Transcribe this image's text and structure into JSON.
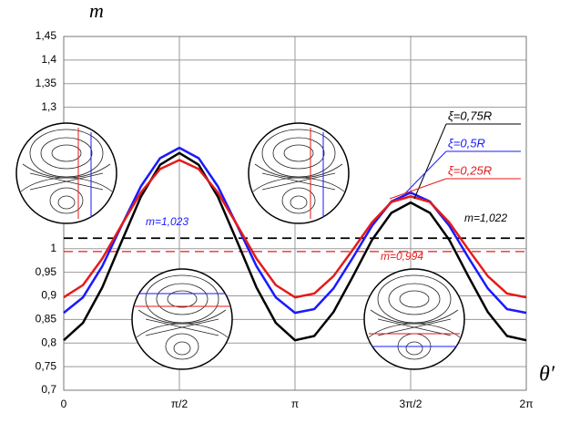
{
  "chart_data": {
    "type": "line",
    "y_label": "m",
    "x_label": "θ′",
    "x": [
      0,
      0.2618,
      0.5236,
      0.7854,
      1.0472,
      1.309,
      1.5708,
      1.8326,
      2.0944,
      2.3562,
      2.618,
      2.8798,
      3.1416,
      3.4034,
      3.6652,
      3.927,
      4.1888,
      4.4506,
      4.7124,
      4.9742,
      5.236,
      5.4978,
      5.7596,
      6.0214,
      6.2832
    ],
    "series": [
      {
        "name": "ξ=0,75R",
        "color": "#000000",
        "values": [
          0.806,
          0.843,
          0.918,
          1.015,
          1.11,
          1.178,
          1.203,
          1.178,
          1.11,
          1.015,
          0.918,
          0.843,
          0.806,
          0.815,
          0.866,
          0.941,
          1.019,
          1.076,
          1.098,
          1.076,
          1.019,
          0.941,
          0.866,
          0.815,
          0.806
        ]
      },
      {
        "name": "ξ=0,5R",
        "color": "#1a1aff",
        "values": [
          0.864,
          0.897,
          0.963,
          1.049,
          1.132,
          1.192,
          1.214,
          1.192,
          1.132,
          1.049,
          0.963,
          0.897,
          0.864,
          0.872,
          0.916,
          0.981,
          1.049,
          1.1,
          1.119,
          1.1,
          1.049,
          0.981,
          0.916,
          0.872,
          0.864
        ]
      },
      {
        "name": "ξ=0,25R",
        "color": "#e51a1a",
        "values": [
          0.897,
          0.923,
          0.979,
          1.05,
          1.119,
          1.169,
          1.188,
          1.169,
          1.119,
          1.05,
          0.979,
          0.923,
          0.897,
          0.905,
          0.942,
          0.998,
          1.056,
          1.099,
          1.111,
          1.099,
          1.056,
          0.998,
          0.942,
          0.905,
          0.897
        ]
      }
    ],
    "reference_lines": [
      {
        "value": 1.023,
        "label": "m=1,023",
        "color": "#1a1aff"
      },
      {
        "value": 1.022,
        "label": "m=1,022",
        "color": "#000000"
      },
      {
        "value": 0.994,
        "label": "m=0,994",
        "color": "#e51a1a"
      }
    ],
    "xlim": [
      0,
      6.2832
    ],
    "xticks": [
      0,
      {
        "value": 1.5708,
        "label": "π/2"
      },
      {
        "value": 3.1416,
        "label": "π"
      },
      {
        "value": 4.7124,
        "label": "3π/2"
      },
      {
        "value": 6.2832,
        "label": "2π"
      }
    ],
    "ylim": [
      0.7,
      1.45
    ],
    "yticks": [
      {
        "value": 0.7,
        "label": "0,7"
      },
      {
        "value": 0.75,
        "label": "0,75"
      },
      {
        "value": 0.8,
        "label": "0,8"
      },
      {
        "value": 0.85,
        "label": "0,85"
      },
      {
        "value": 0.9,
        "label": "0,9"
      },
      {
        "value": 0.95,
        "label": "0,95"
      },
      1,
      {
        "value": 1.3,
        "label": "1,3"
      },
      {
        "value": 1.35,
        "label": "1,35"
      },
      {
        "value": 1.4,
        "label": "1,4"
      },
      {
        "value": 1.45,
        "label": "1,45"
      }
    ],
    "grid": true
  }
}
